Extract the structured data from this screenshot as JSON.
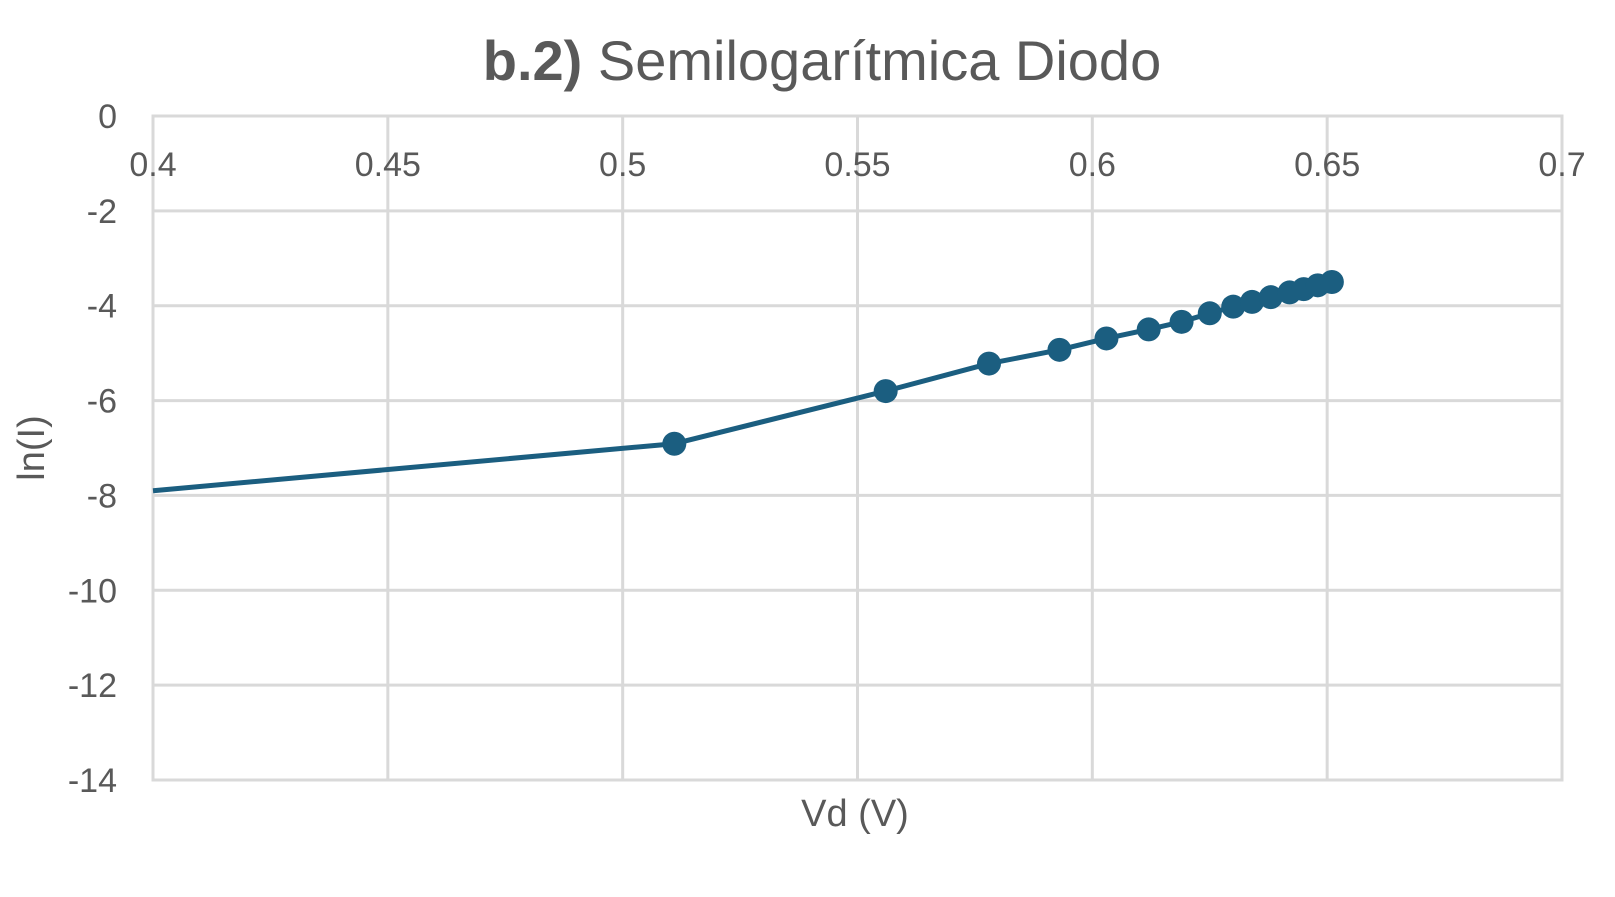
{
  "chart_data": {
    "type": "scatter",
    "title_bold": "b.2)",
    "title_rest": " Semilogarítmica Diodo",
    "xlabel": "Vd (V)",
    "ylabel": "ln(I)",
    "xlim": [
      0.4,
      0.7
    ],
    "ylim": [
      -14,
      0
    ],
    "xticks": [
      "0.4",
      "0.45",
      "0.5",
      "0.55",
      "0.6",
      "0.65",
      "0.7"
    ],
    "xtick_values": [
      0.4,
      0.45,
      0.5,
      0.55,
      0.6,
      0.65,
      0.7
    ],
    "yticks": [
      "0",
      "-2",
      "-4",
      "-6",
      "-8",
      "-10",
      "-12",
      "-14"
    ],
    "ytick_values": [
      0,
      -2,
      -4,
      -6,
      -8,
      -10,
      -12,
      -14
    ],
    "x_axis_crosses_at": 0,
    "grid": true,
    "series_color": "#1b5e80",
    "series": [
      {
        "line_points": [
          {
            "x": 0.4,
            "y": -7.9
          },
          {
            "x": 0.511,
            "y": -6.91
          }
        ],
        "points": [
          {
            "x": 0.511,
            "y": -6.91
          },
          {
            "x": 0.556,
            "y": -5.8
          },
          {
            "x": 0.578,
            "y": -5.22
          },
          {
            "x": 0.593,
            "y": -4.93
          },
          {
            "x": 0.603,
            "y": -4.69
          },
          {
            "x": 0.612,
            "y": -4.5
          },
          {
            "x": 0.619,
            "y": -4.34
          },
          {
            "x": 0.625,
            "y": -4.16
          },
          {
            "x": 0.63,
            "y": -4.02
          },
          {
            "x": 0.634,
            "y": -3.92
          },
          {
            "x": 0.638,
            "y": -3.82
          },
          {
            "x": 0.642,
            "y": -3.72
          },
          {
            "x": 0.645,
            "y": -3.65
          },
          {
            "x": 0.648,
            "y": -3.57
          },
          {
            "x": 0.651,
            "y": -3.5
          }
        ]
      }
    ]
  }
}
